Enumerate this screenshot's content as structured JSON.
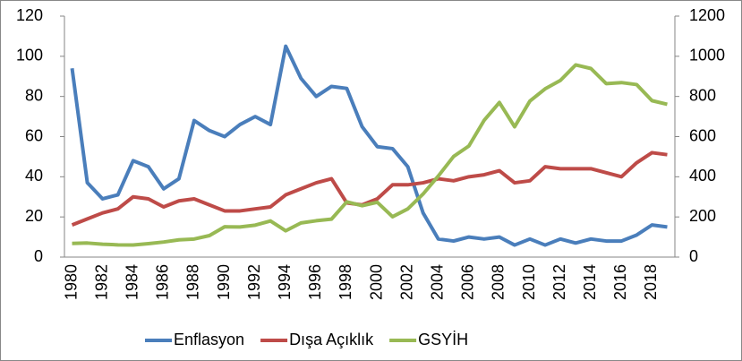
{
  "chart_data": {
    "type": "line",
    "categories": [
      1980,
      null,
      1982,
      null,
      1984,
      null,
      1986,
      null,
      1988,
      null,
      1990,
      null,
      1992,
      null,
      1994,
      null,
      1996,
      null,
      1998,
      null,
      2000,
      null,
      2002,
      null,
      2004,
      null,
      2006,
      null,
      2008,
      null,
      2010,
      null,
      2012,
      null,
      2014,
      null,
      2016,
      null,
      2018,
      null
    ],
    "series": [
      {
        "name": "Enflasyon",
        "color": "#4a7ebb",
        "axis": "y",
        "values": [
          94,
          37,
          29,
          31,
          48,
          45,
          34,
          39,
          68,
          63,
          60,
          66,
          70,
          66,
          105,
          89,
          80,
          85,
          84,
          65,
          55,
          54,
          45,
          22,
          9,
          8,
          10,
          9,
          10,
          6,
          9,
          6,
          9,
          7,
          9,
          8,
          8,
          11,
          16,
          15
        ]
      },
      {
        "name": "Dışa Açıklık",
        "color": "#be4b48",
        "axis": "y",
        "values": [
          16,
          19,
          22,
          24,
          30,
          29,
          25,
          28,
          29,
          26,
          23,
          23,
          24,
          25,
          31,
          34,
          37,
          39,
          27,
          26,
          29,
          36,
          36,
          37,
          39,
          38,
          40,
          41,
          43,
          37,
          38,
          45,
          44,
          44,
          44,
          42,
          40,
          47,
          52,
          51
        ]
      },
      {
        "name": "GSYİH",
        "color": "#98b954",
        "axis": "y2",
        "values": [
          68,
          70,
          64,
          61,
          60,
          67,
          75,
          86,
          90,
          107,
          151,
          150,
          159,
          180,
          131,
          170,
          181,
          189,
          275,
          256,
          273,
          201,
          240,
          314,
          404,
          501,
          553,
          681,
          770,
          649,
          777,
          838,
          880,
          957,
          939,
          864,
          869,
          859,
          779,
          761
        ]
      }
    ],
    "ylim": [
      0,
      120
    ],
    "yticks": [
      0,
      20,
      40,
      60,
      80,
      100,
      120
    ],
    "y2lim": [
      0,
      1200
    ],
    "y2ticks": [
      0,
      200,
      400,
      600,
      800,
      1000,
      1200
    ],
    "legend": "bottom"
  }
}
